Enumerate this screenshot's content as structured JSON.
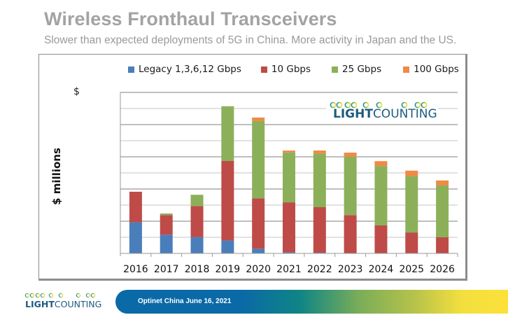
{
  "slide": {
    "title": "Wireless Fronthaul Transceivers",
    "subtitle": "Slower than expected deployments of 5G in China. More activity in Japan and the US.",
    "truncated_axis_fragment": "$",
    "footer_text": "Optinet China June 16, 2021"
  },
  "logo": {
    "bold_part": "LIGHT",
    "regular_part": "COUNTING",
    "colors": {
      "text": "#1e5b80",
      "line_start": "#1b8a9a",
      "line_mid": "#7db64a",
      "line_end": "#f2e23a"
    }
  },
  "chart_data": {
    "type": "bar",
    "stacked": true,
    "title": "",
    "xlabel": "",
    "ylabel": "$ millions",
    "y_units_note": "Y-axis tick values not shown; values expressed in gridline units (10 equal intervals)",
    "ylim": [
      0,
      10
    ],
    "grid": true,
    "legend_position": "top",
    "categories": [
      "2016",
      "2017",
      "2018",
      "2019",
      "2020",
      "2021",
      "2022",
      "2023",
      "2024",
      "2025",
      "2026"
    ],
    "series": [
      {
        "name": "Legacy 1,3,6,12 Gbps",
        "color": "#4a7ebb",
        "values": [
          1.93,
          1.16,
          1.01,
          0.8,
          0.29,
          0.07,
          0.04,
          0.0,
          0.0,
          0.0,
          0.0
        ]
      },
      {
        "name": "10 Gbps",
        "color": "#be4b48",
        "values": [
          1.9,
          1.22,
          1.93,
          4.94,
          3.13,
          3.1,
          2.83,
          2.38,
          1.74,
          1.3,
          1.0
        ]
      },
      {
        "name": "25 Gbps",
        "color": "#8cb05a",
        "values": [
          0.0,
          0.1,
          0.7,
          3.4,
          4.8,
          3.1,
          3.33,
          3.62,
          3.69,
          3.5,
          3.22
        ]
      },
      {
        "name": "100 Gbps",
        "color": "#f08a45",
        "values": [
          0.0,
          0.0,
          0.0,
          0.0,
          0.22,
          0.12,
          0.19,
          0.26,
          0.3,
          0.34,
          0.31
        ]
      }
    ]
  }
}
